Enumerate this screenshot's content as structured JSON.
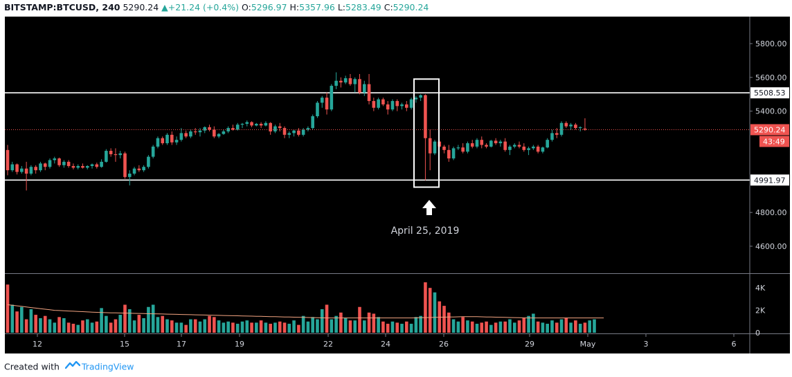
{
  "header": {
    "symbol": "BITSTAMP:BTCUSD, 240",
    "last": "5290.24",
    "arrow": "▲",
    "change": "+21.24 (+0.4%)",
    "o_label": "O:",
    "o_value": "5296.97",
    "h_label": "H:",
    "h_value": "5357.96",
    "l_label": "L:",
    "l_value": "5283.49",
    "c_label": "C:",
    "c_value": "5290.24"
  },
  "annotation": {
    "label": "April 25, 2019",
    "icon": "arrow-up-icon"
  },
  "footer": {
    "prefix": "Created with",
    "brand": "TradingView",
    "icon": "tradingview-logo-icon"
  },
  "colors": {
    "up": "#26a69a",
    "down": "#ef5350",
    "background": "#000000",
    "ma_line": "#f4a582"
  },
  "chart_data": {
    "type": "candlestick",
    "y_range": [
      4440,
      5960
    ],
    "y_ticks": [
      "5800.00",
      "5600.00",
      "5400.00",
      "4800.00",
      "4600.00"
    ],
    "x_tick_labels": [
      "12",
      "15",
      "17",
      "19",
      "22",
      "24",
      "26",
      "29",
      "May",
      "3",
      "6"
    ],
    "x_tick_positions": [
      4,
      14,
      20,
      26,
      33,
      39,
      45,
      51,
      57,
      63,
      69
    ],
    "horizontal_lines": [
      {
        "value": 5508.53,
        "label": "5508.53",
        "color": "#ffffff"
      },
      {
        "value": 4991.97,
        "label": "4991.97",
        "color": "#ffffff"
      }
    ],
    "last_price": {
      "value": 5290.24,
      "label": "5290.24",
      "countdown": "43:49"
    },
    "highlight_range": {
      "from_index": 40,
      "to_index": 44,
      "value_low": 4950,
      "value_high": 5590
    },
    "volume_range": [
      0,
      5000
    ],
    "volume_ticks": [
      "4K",
      "2K",
      "0"
    ],
    "candles": [
      [
        5170,
        5200,
        5020,
        5050
      ],
      [
        5050,
        5100,
        5040,
        5085
      ],
      [
        5085,
        5090,
        5025,
        5040
      ],
      [
        5040,
        5075,
        5030,
        5060
      ],
      [
        5060,
        5100,
        4930,
        5030
      ],
      [
        5030,
        5080,
        5020,
        5070
      ],
      [
        5070,
        5080,
        5030,
        5050
      ],
      [
        5050,
        5100,
        5040,
        5090
      ],
      [
        5090,
        5095,
        5050,
        5070
      ],
      [
        5070,
        5120,
        5060,
        5110
      ],
      [
        5110,
        5130,
        5090,
        5120
      ],
      [
        5120,
        5125,
        5070,
        5080
      ],
      [
        5080,
        5110,
        5065,
        5100
      ],
      [
        5100,
        5110,
        5065,
        5075
      ],
      [
        5075,
        5090,
        5055,
        5065
      ],
      [
        5065,
        5085,
        5055,
        5075
      ],
      [
        5075,
        5090,
        5060,
        5065
      ],
      [
        5065,
        5080,
        5055,
        5075
      ],
      [
        5075,
        5090,
        5060,
        5085
      ],
      [
        5085,
        5095,
        5060,
        5070
      ],
      [
        5070,
        5115,
        5065,
        5100
      ],
      [
        5100,
        5175,
        5095,
        5165
      ],
      [
        5165,
        5180,
        5130,
        5145
      ],
      [
        5145,
        5180,
        5100,
        5140
      ],
      [
        5140,
        5165,
        5120,
        5150
      ],
      [
        5150,
        5160,
        5000,
        5010
      ],
      [
        5010,
        5050,
        4960,
        5030
      ],
      [
        5030,
        5070,
        5020,
        5060
      ],
      [
        5060,
        5080,
        5040,
        5050
      ],
      [
        5050,
        5080,
        5040,
        5070
      ],
      [
        5070,
        5140,
        5060,
        5130
      ],
      [
        5130,
        5200,
        5120,
        5190
      ],
      [
        5190,
        5250,
        5180,
        5240
      ],
      [
        5240,
        5250,
        5200,
        5210
      ],
      [
        5210,
        5270,
        5200,
        5260
      ],
      [
        5260,
        5280,
        5200,
        5215
      ],
      [
        5215,
        5250,
        5200,
        5230
      ],
      [
        5230,
        5300,
        5220,
        5270
      ],
      [
        5270,
        5285,
        5240,
        5250
      ],
      [
        5250,
        5290,
        5240,
        5280
      ],
      [
        5280,
        5300,
        5260,
        5275
      ],
      [
        5275,
        5300,
        5250,
        5285
      ],
      [
        5285,
        5310,
        5270,
        5305
      ],
      [
        5305,
        5320,
        5280,
        5290
      ],
      [
        5290,
        5310,
        5240,
        5250
      ],
      [
        5250,
        5270,
        5240,
        5265
      ],
      [
        5265,
        5290,
        5260,
        5280
      ],
      [
        5280,
        5310,
        5270,
        5300
      ],
      [
        5300,
        5320,
        5285,
        5290
      ],
      [
        5290,
        5330,
        5285,
        5320
      ],
      [
        5320,
        5330,
        5300,
        5325
      ],
      [
        5325,
        5345,
        5310,
        5335
      ],
      [
        5335,
        5340,
        5305,
        5315
      ],
      [
        5315,
        5330,
        5310,
        5325
      ],
      [
        5325,
        5335,
        5300,
        5315
      ],
      [
        5315,
        5340,
        5310,
        5330
      ],
      [
        5330,
        5335,
        5260,
        5280
      ],
      [
        5280,
        5320,
        5270,
        5310
      ],
      [
        5310,
        5330,
        5280,
        5300
      ],
      [
        5300,
        5310,
        5240,
        5260
      ],
      [
        5260,
        5280,
        5240,
        5270
      ],
      [
        5270,
        5290,
        5250,
        5285
      ],
      [
        5285,
        5300,
        5250,
        5260
      ],
      [
        5260,
        5300,
        5250,
        5290
      ],
      [
        5290,
        5310,
        5280,
        5300
      ],
      [
        5300,
        5380,
        5290,
        5370
      ],
      [
        5370,
        5460,
        5360,
        5450
      ],
      [
        5450,
        5490,
        5420,
        5480
      ],
      [
        5480,
        5510,
        5380,
        5410
      ],
      [
        5410,
        5560,
        5400,
        5550
      ],
      [
        5550,
        5630,
        5530,
        5580
      ],
      [
        5580,
        5600,
        5540,
        5570
      ],
      [
        5570,
        5610,
        5560,
        5595
      ],
      [
        5595,
        5620,
        5550,
        5560
      ],
      [
        5560,
        5600,
        5510,
        5590
      ],
      [
        5590,
        5620,
        5500,
        5510
      ],
      [
        5510,
        5580,
        5490,
        5560
      ],
      [
        5560,
        5620,
        5440,
        5460
      ],
      [
        5460,
        5480,
        5400,
        5420
      ],
      [
        5420,
        5480,
        5410,
        5470
      ],
      [
        5470,
        5480,
        5430,
        5440
      ],
      [
        5440,
        5460,
        5380,
        5410
      ],
      [
        5410,
        5470,
        5400,
        5460
      ],
      [
        5460,
        5470,
        5400,
        5430
      ],
      [
        5430,
        5450,
        5410,
        5440
      ],
      [
        5440,
        5460,
        5400,
        5420
      ],
      [
        5420,
        5480,
        5410,
        5470
      ],
      [
        5470,
        5490,
        5450,
        5480
      ],
      [
        5480,
        5500,
        5460,
        5495
      ],
      [
        5495,
        5500,
        4990,
        5240
      ],
      [
        5240,
        5290,
        5050,
        5150
      ],
      [
        5150,
        5230,
        5140,
        5220
      ],
      [
        5220,
        5230,
        5180,
        5190
      ],
      [
        5190,
        5200,
        5150,
        5170
      ],
      [
        5170,
        5200,
        5100,
        5120
      ],
      [
        5120,
        5190,
        5110,
        5180
      ],
      [
        5180,
        5200,
        5170,
        5185
      ],
      [
        5185,
        5210,
        5150,
        5160
      ],
      [
        5160,
        5220,
        5150,
        5210
      ],
      [
        5210,
        5230,
        5180,
        5190
      ],
      [
        5190,
        5240,
        5180,
        5230
      ],
      [
        5230,
        5250,
        5180,
        5200
      ],
      [
        5200,
        5210,
        5180,
        5190
      ],
      [
        5190,
        5230,
        5185,
        5225
      ],
      [
        5225,
        5240,
        5200,
        5210
      ],
      [
        5210,
        5230,
        5190,
        5220
      ],
      [
        5220,
        5240,
        5160,
        5170
      ],
      [
        5170,
        5200,
        5140,
        5190
      ],
      [
        5190,
        5210,
        5180,
        5200
      ],
      [
        5200,
        5220,
        5180,
        5190
      ],
      [
        5190,
        5210,
        5160,
        5170
      ],
      [
        5170,
        5190,
        5140,
        5180
      ],
      [
        5180,
        5200,
        5170,
        5190
      ],
      [
        5190,
        5200,
        5150,
        5160
      ],
      [
        5160,
        5190,
        5150,
        5185
      ],
      [
        5185,
        5240,
        5180,
        5230
      ],
      [
        5230,
        5290,
        5220,
        5270
      ],
      [
        5270,
        5300,
        5240,
        5260
      ],
      [
        5260,
        5340,
        5250,
        5330
      ],
      [
        5330,
        5340,
        5300,
        5310
      ],
      [
        5310,
        5330,
        5290,
        5320
      ],
      [
        5320,
        5330,
        5290,
        5300
      ],
      [
        5300,
        5310,
        5280,
        5305
      ],
      [
        5296.97,
        5357.96,
        5283.49,
        5290.24
      ]
    ],
    "volumes": [
      4300,
      2500,
      1900,
      2300,
      1200,
      2100,
      1600,
      1300,
      1500,
      1200,
      900,
      1400,
      1300,
      900,
      800,
      700,
      1100,
      1200,
      900,
      1000,
      2200,
      1500,
      900,
      1200,
      1600,
      2500,
      2100,
      1100,
      1600,
      1300,
      2300,
      2500,
      1400,
      1500,
      1200,
      1100,
      900,
      900,
      700,
      1200,
      1200,
      1000,
      1200,
      1500,
      1400,
      1100,
      900,
      1000,
      900,
      800,
      1000,
      1100,
      900,
      900,
      1100,
      900,
      800,
      900,
      1000,
      900,
      800,
      1100,
      700,
      1500,
      1000,
      1400,
      1200,
      2100,
      2500,
      1200,
      1500,
      1800,
      1300,
      1100,
      1100,
      2300,
      1100,
      1800,
      1700,
      1400,
      1000,
      800,
      1000,
      900,
      800,
      1000,
      800,
      1400,
      1500,
      4500,
      4000,
      3600,
      2800,
      2400,
      1800,
      1200,
      1000,
      1400,
      1100,
      1000,
      800,
      900,
      1000,
      700,
      900,
      1000,
      1000,
      1200,
      900,
      1100,
      1300,
      1500,
      1700,
      1000,
      900,
      800,
      1100,
      900,
      1200,
      1300,
      900,
      1100,
      800,
      900,
      1100,
      1200
    ],
    "volume_ma": [
      2500,
      2450,
      2400,
      2350,
      2300,
      2250,
      2200,
      2150,
      2100,
      2050,
      2000,
      1980,
      1960,
      1940,
      1920,
      1900,
      1880,
      1860,
      1840,
      1820,
      1800,
      1790,
      1780,
      1770,
      1760,
      1750,
      1740,
      1730,
      1720,
      1710,
      1700,
      1690,
      1680,
      1670,
      1660,
      1650,
      1640,
      1630,
      1620,
      1610,
      1600,
      1590,
      1580,
      1570,
      1560,
      1550,
      1540,
      1530,
      1520,
      1510,
      1500,
      1490,
      1480,
      1470,
      1460,
      1450,
      1440,
      1430,
      1420,
      1410,
      1400,
      1390,
      1380,
      1370,
      1360,
      1350,
      1340,
      1330,
      1320,
      1320,
      1320,
      1320,
      1320,
      1320,
      1320,
      1320,
      1320,
      1320,
      1320,
      1320,
      1320,
      1320,
      1320,
      1320,
      1320,
      1320,
      1320,
      1330,
      1340,
      1350,
      1360,
      1370,
      1380,
      1390,
      1400,
      1410,
      1420,
      1430,
      1440,
      1440,
      1430,
      1420,
      1410,
      1400,
      1390,
      1380,
      1370,
      1360,
      1350,
      1340,
      1330,
      1320,
      1320,
      1320,
      1320,
      1320,
      1320,
      1320,
      1320,
      1320,
      1320,
      1320,
      1320,
      1320,
      1320,
      1320,
      1320,
      1320
    ]
  }
}
